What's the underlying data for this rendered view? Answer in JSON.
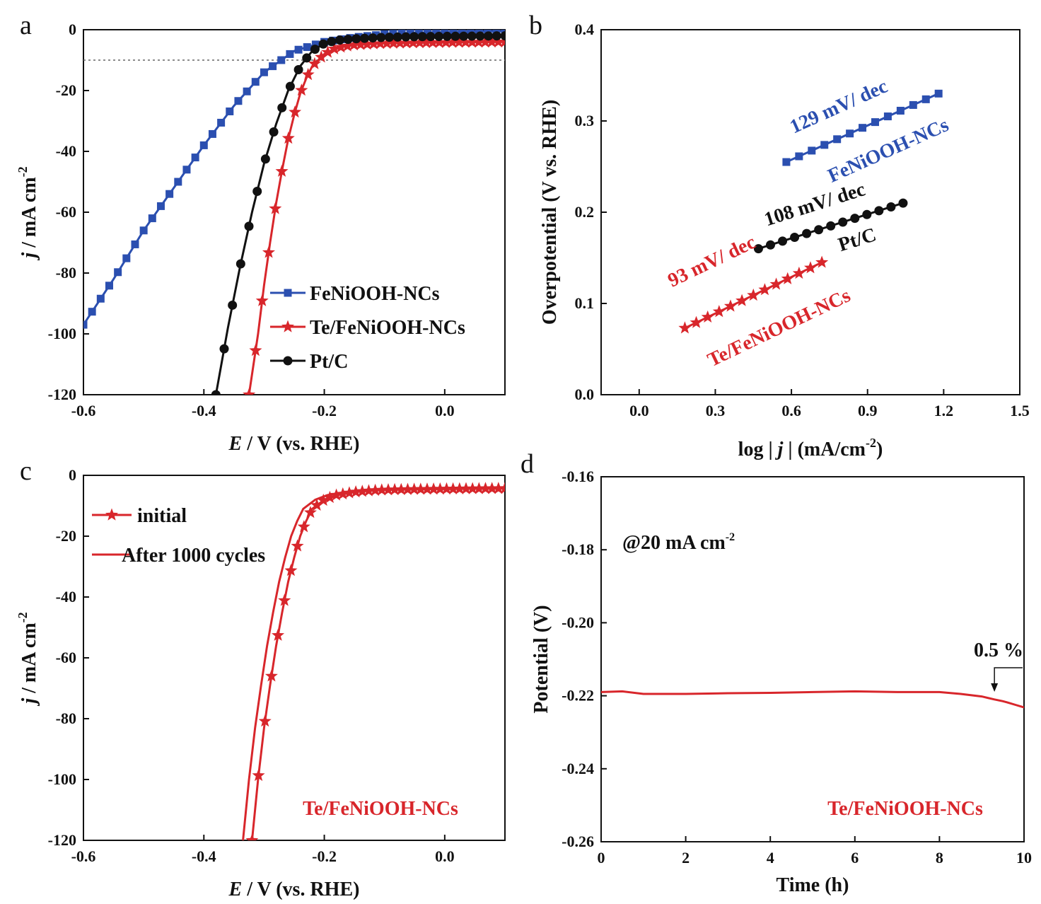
{
  "panels": [
    {
      "id": "a",
      "label": "a",
      "chart_data": {
        "type": "line",
        "xlabel_italic": "E",
        "xlabel_rest": " / V (vs. RHE)",
        "ylabel_italic": "j",
        "ylabel_rest": " / mA cm",
        "ylabel_sup": "-2",
        "xlim": [
          -0.6,
          0.1
        ],
        "ylim": [
          -120,
          0
        ],
        "xticks": [
          -0.6,
          -0.4,
          -0.2,
          0.0
        ],
        "xtick_labels": [
          "-0.6",
          "-0.4",
          "-0.2",
          "0.0"
        ],
        "yticks": [
          0,
          -20,
          -40,
          -60,
          -80,
          -100,
          -120
        ],
        "ytick_labels": [
          "0",
          "-20",
          "-40",
          "-60",
          "-80",
          "-100",
          "-120"
        ],
        "reference_line_y": -10,
        "legend_position": "bottom-right",
        "series": [
          {
            "name": "FeNiOOH-NCs",
            "color": "#2b4fb0",
            "marker": "square",
            "x": [
              -0.6,
              -0.55,
              -0.5,
              -0.45,
              -0.4,
              -0.35,
              -0.3,
              -0.25,
              -0.2,
              -0.15,
              -0.1,
              -0.05,
              0.0,
              0.05,
              0.1
            ],
            "y": [
              -97,
              -82,
              -66,
              -52,
              -38,
              -25,
              -14,
              -7,
              -4,
              -2.5,
              -1.5,
              -1,
              -0.8,
              -0.6,
              -0.5
            ]
          },
          {
            "name": "Te/FeNiOOH-NCs",
            "color": "#d8262b",
            "marker": "star",
            "x": [
              -0.325,
              -0.31,
              -0.3,
              -0.29,
              -0.28,
              -0.27,
              -0.26,
              -0.25,
              -0.24,
              -0.23,
              -0.22,
              -0.2,
              -0.18,
              -0.15,
              -0.1,
              -0.05,
              0.0,
              0.05,
              0.1
            ],
            "y": [
              -120,
              -100,
              -84,
              -70,
              -57,
              -46,
              -36,
              -28,
              -21,
              -16,
              -12,
              -8,
              -6,
              -5,
              -4.5,
              -4.3,
              -4.2,
              -4.1,
              -4
            ]
          },
          {
            "name": "Pt/C",
            "color": "#111111",
            "marker": "circle",
            "x": [
              -0.38,
              -0.36,
              -0.34,
              -0.32,
              -0.3,
              -0.28,
              -0.26,
              -0.24,
              -0.22,
              -0.2,
              -0.18,
              -0.15,
              -0.1,
              -0.05,
              0.0,
              0.05,
              0.1
            ],
            "y": [
              -120,
              -98,
              -78,
              -60,
              -44,
              -31,
              -20,
              -12,
              -7,
              -4.5,
              -3.5,
              -3,
              -2.5,
              -2.3,
              -2.2,
              -2.1,
              -2
            ]
          }
        ]
      }
    },
    {
      "id": "b",
      "label": "b",
      "chart_data": {
        "type": "scatter",
        "xlabel_pre": "log | ",
        "xlabel_italic": "j",
        "xlabel_post": " | (mA/cm",
        "xlabel_sup": "-2",
        "xlabel_close": ")",
        "ylabel": "Overpotential (V vs. RHE)",
        "xlim": [
          -0.15,
          1.5
        ],
        "ylim": [
          0.0,
          0.4
        ],
        "xticks": [
          0.0,
          0.3,
          0.6,
          0.9,
          1.2,
          1.5
        ],
        "xtick_labels": [
          "0.0",
          "0.3",
          "0.6",
          "0.9",
          "1.2",
          "1.5"
        ],
        "yticks": [
          0.0,
          0.1,
          0.2,
          0.3,
          0.4
        ],
        "ytick_labels": [
          "0.0",
          "0.1",
          "0.2",
          "0.3",
          "0.4"
        ],
        "series": [
          {
            "name": "FeNiOOH-NCs",
            "slope_text": "129 mV/ dec",
            "color": "#2b4fb0",
            "marker": "square",
            "x_start": 0.58,
            "x_end": 1.18,
            "y_start": 0.255,
            "y_end": 0.33,
            "n": 13
          },
          {
            "name": "Pt/C",
            "slope_text": "108 mV/ dec",
            "color": "#111111",
            "marker": "circle",
            "x_start": 0.47,
            "x_end": 1.04,
            "y_start": 0.16,
            "y_end": 0.21,
            "n": 13
          },
          {
            "name": "Te/FeNiOOH-NCs",
            "slope_text": "93 mV/ dec",
            "color": "#d8262b",
            "marker": "star",
            "x_start": 0.18,
            "x_end": 0.72,
            "y_start": 0.073,
            "y_end": 0.145,
            "n": 13
          }
        ]
      }
    },
    {
      "id": "c",
      "label": "c",
      "chart_data": {
        "type": "line",
        "xlabel_italic": "E",
        "xlabel_rest": " / V (vs. RHE)",
        "ylabel_italic": "j",
        "ylabel_rest": " / mA cm",
        "ylabel_sup": "-2",
        "xlim": [
          -0.6,
          0.1
        ],
        "ylim": [
          -120,
          0
        ],
        "xticks": [
          -0.6,
          -0.4,
          -0.2,
          0.0
        ],
        "xtick_labels": [
          "-0.6",
          "-0.4",
          "-0.2",
          "0.0"
        ],
        "yticks": [
          0,
          -20,
          -40,
          -60,
          -80,
          -100,
          -120
        ],
        "ytick_labels": [
          "0",
          "-20",
          "-40",
          "-60",
          "-80",
          "-100",
          "-120"
        ],
        "annotation": "Te/FeNiOOH-NCs",
        "legend_position": "top-left",
        "series": [
          {
            "name": "initial",
            "color": "#d8262b",
            "marker": "star",
            "x": [
              -0.32,
              -0.31,
              -0.3,
              -0.29,
              -0.28,
              -0.27,
              -0.26,
              -0.25,
              -0.24,
              -0.23,
              -0.22,
              -0.2,
              -0.18,
              -0.15,
              -0.12,
              -0.1,
              -0.05,
              0.0,
              0.05,
              0.1
            ],
            "y": [
              -120,
              -100,
              -83,
              -69,
              -56,
              -45,
              -35,
              -27,
              -20,
              -15,
              -11,
              -8,
              -6.5,
              -5.5,
              -5,
              -4.8,
              -4.6,
              -4.5,
              -4.4,
              -4.3
            ]
          },
          {
            "name": "After 1000 cycles",
            "color": "#d8262b",
            "marker": "none",
            "x": [
              -0.335,
              -0.325,
              -0.315,
              -0.305,
              -0.295,
              -0.285,
              -0.275,
              -0.265,
              -0.255,
              -0.245,
              -0.235,
              -0.215,
              -0.195,
              -0.165,
              -0.13,
              -0.1,
              -0.05,
              0.0,
              0.05,
              0.1
            ],
            "y": [
              -120,
              -100,
              -83,
              -69,
              -56,
              -45,
              -35,
              -27,
              -20,
              -15,
              -11,
              -8,
              -6.5,
              -5.5,
              -5,
              -4.8,
              -4.6,
              -4.5,
              -4.4,
              -4.3
            ]
          }
        ]
      }
    },
    {
      "id": "d",
      "label": "d",
      "chart_data": {
        "type": "line",
        "xlabel": "Time (h)",
        "ylabel": "Potential (V)",
        "xlim": [
          0,
          10
        ],
        "ylim": [
          -0.26,
          -0.16
        ],
        "xticks": [
          0,
          2,
          4,
          6,
          8,
          10
        ],
        "xtick_labels": [
          "0",
          "2",
          "4",
          "6",
          "8",
          "10"
        ],
        "yticks": [
          -0.16,
          -0.18,
          -0.2,
          -0.22,
          -0.24,
          -0.26
        ],
        "ytick_labels": [
          "-0.16",
          "-0.18",
          "-0.20",
          "-0.22",
          "-0.24",
          "-0.26"
        ],
        "condition_text": "@20 mA cm",
        "condition_sup": "-2",
        "annotation": "Te/FeNiOOH-NCs",
        "change_text": "0.5 %",
        "change_arrow_x": 9.3,
        "series": [
          {
            "name": "",
            "color": "#d8262b",
            "marker": "none",
            "x": [
              0,
              0.5,
              1,
              2,
              3,
              4,
              5,
              6,
              7,
              8,
              8.5,
              9,
              9.3,
              9.5,
              9.6,
              9.8,
              10
            ],
            "y": [
              -0.219,
              -0.2188,
              -0.2195,
              -0.2195,
              -0.2193,
              -0.2192,
              -0.219,
              -0.2188,
              -0.219,
              -0.219,
              -0.2195,
              -0.2202,
              -0.221,
              -0.2215,
              -0.2218,
              -0.2225,
              -0.2232
            ]
          }
        ]
      }
    }
  ]
}
